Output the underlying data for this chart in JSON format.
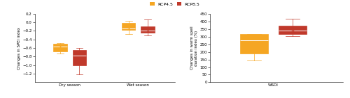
{
  "left_plot": {
    "ylabel": "Changes in SPEI index",
    "categories": [
      "Dry season",
      "Wet season"
    ],
    "rcp45": {
      "dry": {
        "whislo": -0.73,
        "q1": -0.68,
        "med": -0.57,
        "q3": -0.5,
        "whishi": -0.48,
        "mean": -0.57
      },
      "wet": {
        "whislo": -0.28,
        "q1": -0.18,
        "med": -0.14,
        "q3": -0.02,
        "whishi": 0.04,
        "mean": -0.14
      }
    },
    "rcp85": {
      "dry": {
        "whislo": -1.22,
        "q1": -1.0,
        "med": -0.78,
        "q3": -0.65,
        "whishi": -0.6,
        "mean": -0.82
      },
      "wet": {
        "whislo": -0.3,
        "q1": -0.24,
        "med": -0.2,
        "q3": -0.1,
        "whishi": 0.06,
        "mean": -0.2
      }
    },
    "ylim": [
      -1.4,
      0.2
    ],
    "yticks": [
      -1.2,
      -1.0,
      -0.8,
      -0.6,
      -0.4,
      -0.2,
      0.0,
      0.2
    ]
  },
  "right_plot": {
    "ylabel": "Changes in warm spell\nduration index (%)",
    "categories": [
      "WSDI"
    ],
    "rcp45": {
      "wsdi": {
        "whislo": 145,
        "q1": 190,
        "med": 275,
        "q3": 315,
        "whishi": 318,
        "mean": 258
      }
    },
    "rcp85": {
      "wsdi": {
        "whislo": 305,
        "q1": 318,
        "med": 340,
        "q3": 370,
        "whishi": 415,
        "mean": 335
      }
    },
    "ylim": [
      0,
      450
    ],
    "yticks": [
      0,
      50,
      100,
      150,
      200,
      250,
      300,
      350,
      400,
      450
    ]
  },
  "colors": {
    "rcp45": "#F5A623",
    "rcp85": "#C0392B"
  },
  "legend": [
    "RCP4.5",
    "RCP8.5"
  ],
  "background_color": "#ffffff"
}
